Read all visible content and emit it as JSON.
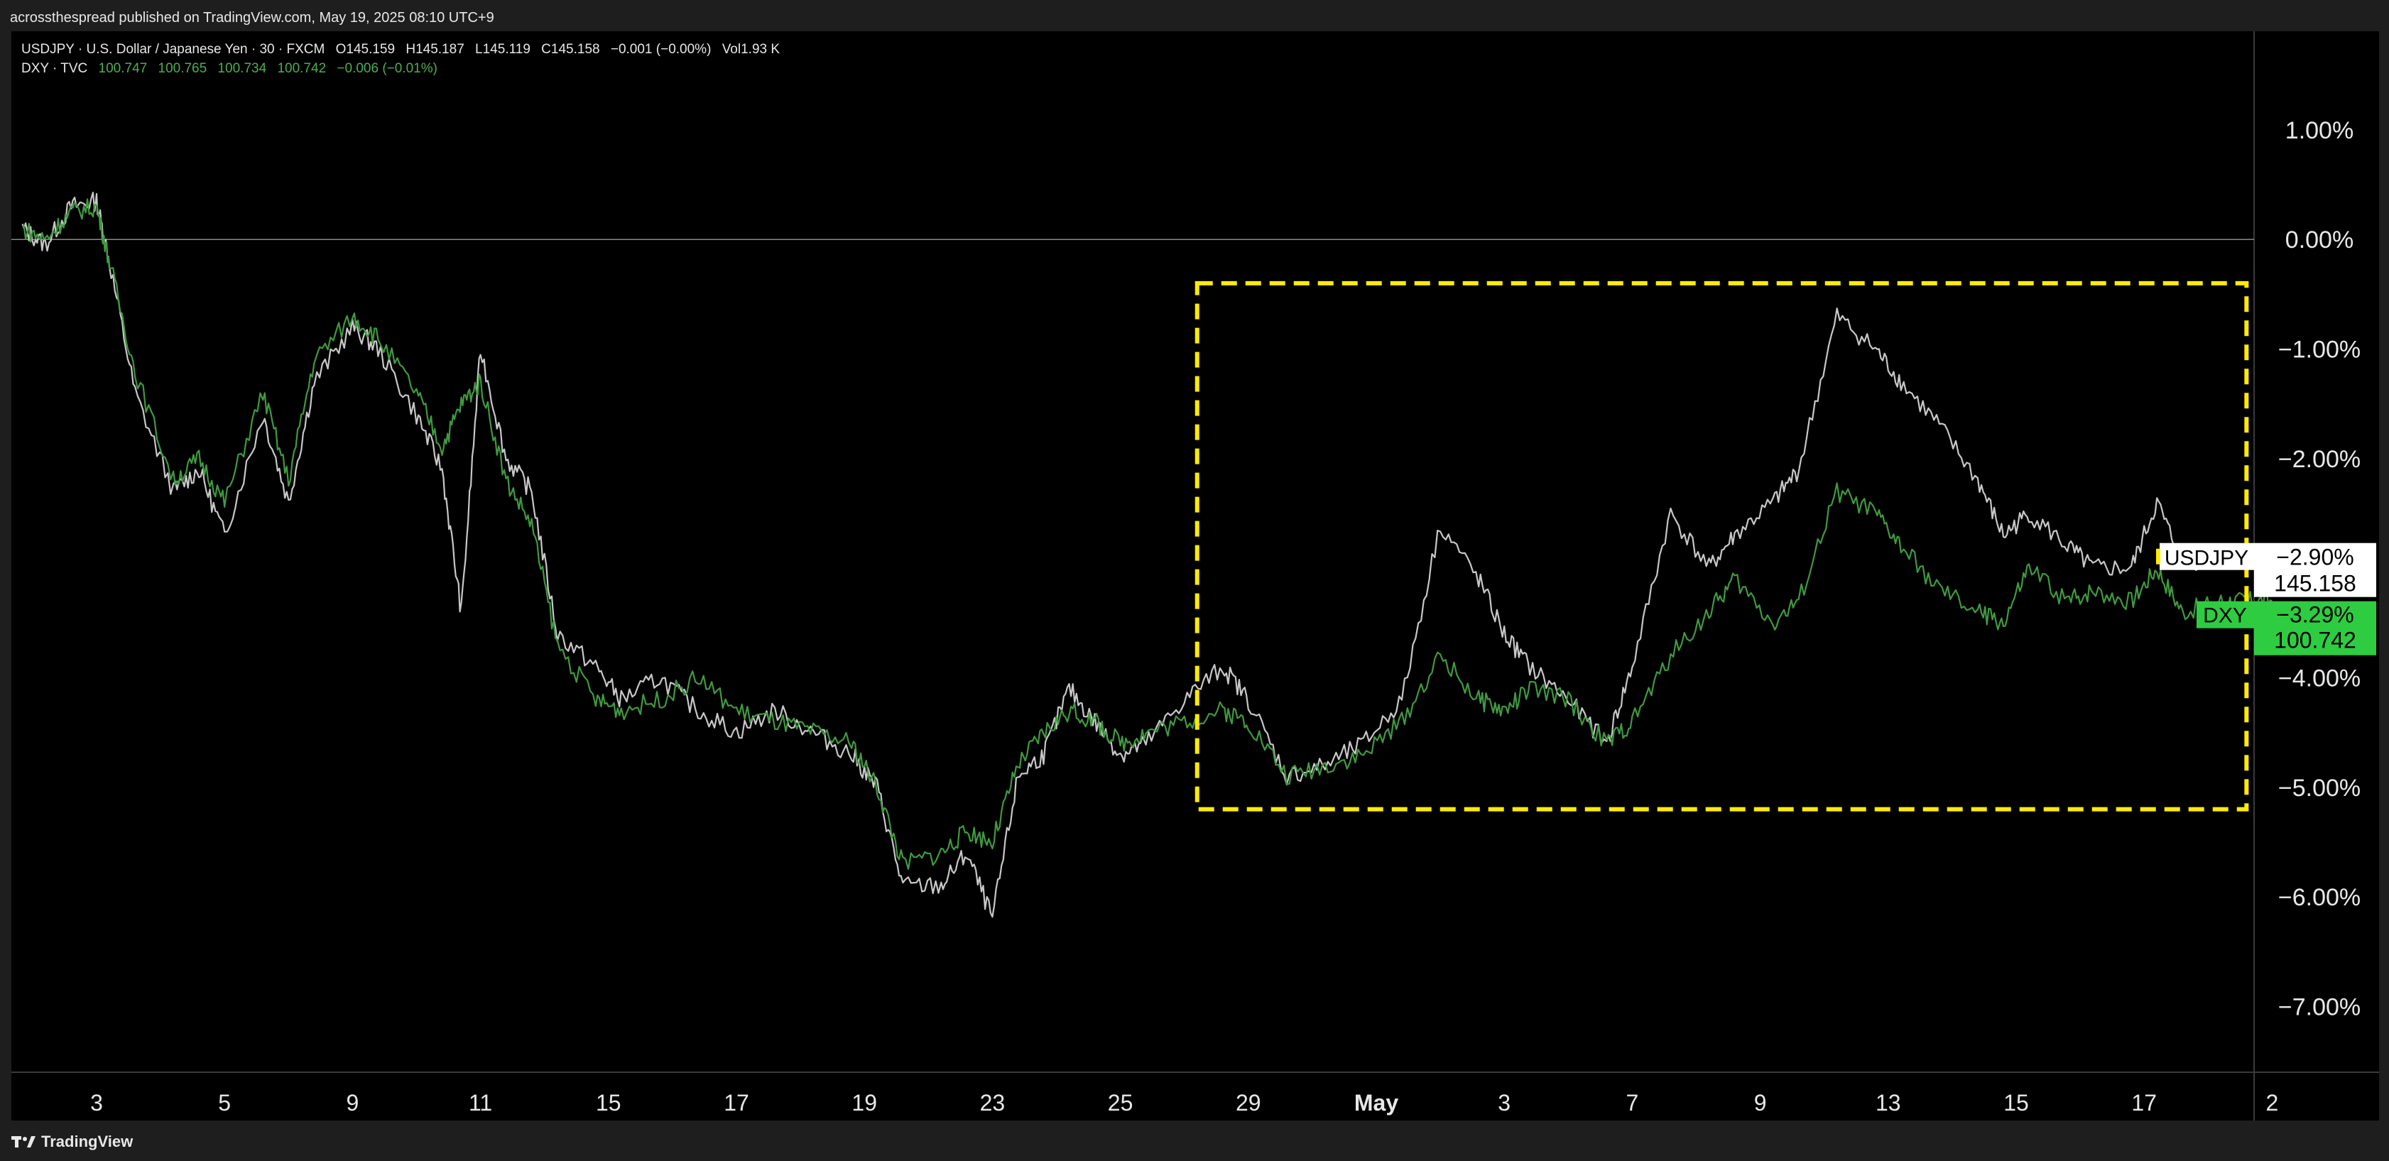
{
  "header": {
    "publish_text": "acrossthespread published on TradingView.com, May 19, 2025 08:10 UTC+9"
  },
  "legend": {
    "usdjpy": {
      "label": "USDJPY · U.S. Dollar / Japanese Yen · 30 · FXCM",
      "open": "O145.159",
      "high": "H145.187",
      "low": "L145.119",
      "close": "C145.158",
      "change": "−0.001 (−0.00%)",
      "volume": "Vol1.93 K"
    },
    "dxy": {
      "label": "DXY · TVC",
      "v1": "100.747",
      "v2": "100.765",
      "v3": "100.734",
      "v4": "100.742",
      "change": "−0.006 (−0.01%)"
    }
  },
  "brand": {
    "name": "TradingView"
  },
  "colors": {
    "usdjpy_line": "#c8c8c8",
    "dxy_line": "#3f9a3f",
    "highlight_box": "#ffeb00",
    "dxy_badge": "#2ecc40",
    "background": "#000000"
  },
  "chart_data": {
    "type": "line",
    "y_unit": "% change",
    "ylim": [
      -7.6,
      1.9
    ],
    "y_ticks": [
      1,
      0,
      -1,
      -2,
      -3,
      -4,
      -5,
      -6,
      -7
    ],
    "y_tick_labels": [
      "1.00%",
      "0.00%",
      "−1.00%",
      "−2.00%",
      "",
      "−4.00%",
      "−5.00%",
      "−6.00%",
      "−7.00%"
    ],
    "x_tick_labels": [
      "3",
      "5",
      "9",
      "11",
      "15",
      "17",
      "19",
      "23",
      "25",
      "29",
      "May",
      "3",
      "7",
      "9",
      "13",
      "15",
      "17",
      "2"
    ],
    "x_tick_index": [
      0,
      1,
      2,
      3,
      4,
      5,
      6,
      7,
      8,
      9,
      10,
      11,
      12,
      13,
      14,
      15,
      16,
      17
    ],
    "x_range": [
      -0.58,
      17
    ],
    "series": [
      {
        "name": "USDJPY",
        "last_pct": "−2.90%",
        "last_price": "145.158",
        "x": [
          -0.58,
          -0.4,
          -0.2,
          0.0,
          0.1,
          0.3,
          0.6,
          0.8,
          1.0,
          1.3,
          1.5,
          1.7,
          2.0,
          2.2,
          2.5,
          2.7,
          2.85,
          3.0,
          3.2,
          3.4,
          3.6,
          3.9,
          4.1,
          4.4,
          4.7,
          5.0,
          5.3,
          5.6,
          5.9,
          6.1,
          6.3,
          6.6,
          6.8,
          7.0,
          7.2,
          7.4,
          7.6,
          7.8,
          8.0,
          8.2,
          8.5,
          8.8,
          9.0,
          9.3,
          9.6,
          9.9,
          10.2,
          10.5,
          10.8,
          11.0,
          11.2,
          11.5,
          11.8,
          12.0,
          12.3,
          12.6,
          12.8,
          13.1,
          13.3,
          13.6,
          13.9,
          14.1,
          14.4,
          14.7,
          14.9,
          15.1,
          15.4,
          15.6,
          15.9,
          16.1,
          16.3,
          16.6,
          16.8,
          17.0
        ],
        "y": [
          0.1,
          -0.05,
          0.3,
          0.35,
          -0.2,
          -1.4,
          -2.3,
          -2.1,
          -2.7,
          -1.6,
          -2.4,
          -1.3,
          -0.8,
          -1.0,
          -1.6,
          -2.1,
          -3.4,
          -1.0,
          -2.0,
          -2.3,
          -3.6,
          -3.9,
          -4.2,
          -4.0,
          -4.3,
          -4.5,
          -4.3,
          -4.5,
          -4.7,
          -5.0,
          -5.9,
          -5.9,
          -5.6,
          -6.2,
          -4.9,
          -4.7,
          -4.1,
          -4.4,
          -4.7,
          -4.6,
          -4.2,
          -3.9,
          -4.2,
          -4.9,
          -4.8,
          -4.6,
          -4.2,
          -2.6,
          -3.1,
          -3.6,
          -3.9,
          -4.2,
          -4.6,
          -3.9,
          -2.5,
          -3.0,
          -2.7,
          -2.4,
          -2.1,
          -0.7,
          -1.0,
          -1.3,
          -1.7,
          -2.2,
          -2.7,
          -2.5,
          -2.8,
          -3.0,
          -3.0,
          -2.4,
          -2.95,
          -2.9,
          -2.9,
          -2.9
        ]
      },
      {
        "name": "DXY",
        "last_pct": "−3.29%",
        "last_price": "100.742",
        "x": [
          -0.58,
          -0.4,
          -0.2,
          0.0,
          0.1,
          0.3,
          0.6,
          0.8,
          1.0,
          1.3,
          1.5,
          1.7,
          2.0,
          2.2,
          2.5,
          2.7,
          2.85,
          3.0,
          3.2,
          3.4,
          3.6,
          3.9,
          4.1,
          4.4,
          4.7,
          5.0,
          5.3,
          5.6,
          5.9,
          6.1,
          6.3,
          6.6,
          6.8,
          7.0,
          7.2,
          7.4,
          7.6,
          7.8,
          8.0,
          8.2,
          8.5,
          8.8,
          9.0,
          9.3,
          9.6,
          9.9,
          10.2,
          10.5,
          10.8,
          11.0,
          11.2,
          11.5,
          11.8,
          12.0,
          12.3,
          12.6,
          12.8,
          13.1,
          13.3,
          13.6,
          13.9,
          14.1,
          14.4,
          14.7,
          14.9,
          15.1,
          15.4,
          15.6,
          15.9,
          16.1,
          16.3,
          16.6,
          16.8,
          17.0
        ],
        "y": [
          0.1,
          0.0,
          0.25,
          0.3,
          -0.2,
          -1.2,
          -2.2,
          -2.0,
          -2.4,
          -1.4,
          -2.2,
          -1.1,
          -0.7,
          -0.9,
          -1.4,
          -1.9,
          -1.5,
          -1.3,
          -2.2,
          -2.6,
          -3.7,
          -4.2,
          -4.3,
          -4.2,
          -4.0,
          -4.3,
          -4.4,
          -4.5,
          -4.6,
          -5.0,
          -5.7,
          -5.6,
          -5.4,
          -5.5,
          -4.8,
          -4.5,
          -4.3,
          -4.4,
          -4.6,
          -4.5,
          -4.4,
          -4.3,
          -4.4,
          -4.9,
          -4.8,
          -4.7,
          -4.4,
          -3.8,
          -4.2,
          -4.3,
          -4.1,
          -4.2,
          -4.6,
          -4.4,
          -3.8,
          -3.4,
          -3.1,
          -3.5,
          -3.3,
          -2.3,
          -2.5,
          -2.8,
          -3.2,
          -3.4,
          -3.5,
          -3.0,
          -3.3,
          -3.2,
          -3.3,
          -3.0,
          -3.4,
          -3.3,
          -3.3,
          -3.3
        ]
      }
    ],
    "reference_line_y": 0,
    "highlight_box": {
      "x0": 8.6,
      "x1": 16.8,
      "y0": -0.4,
      "y1": -5.2
    }
  }
}
